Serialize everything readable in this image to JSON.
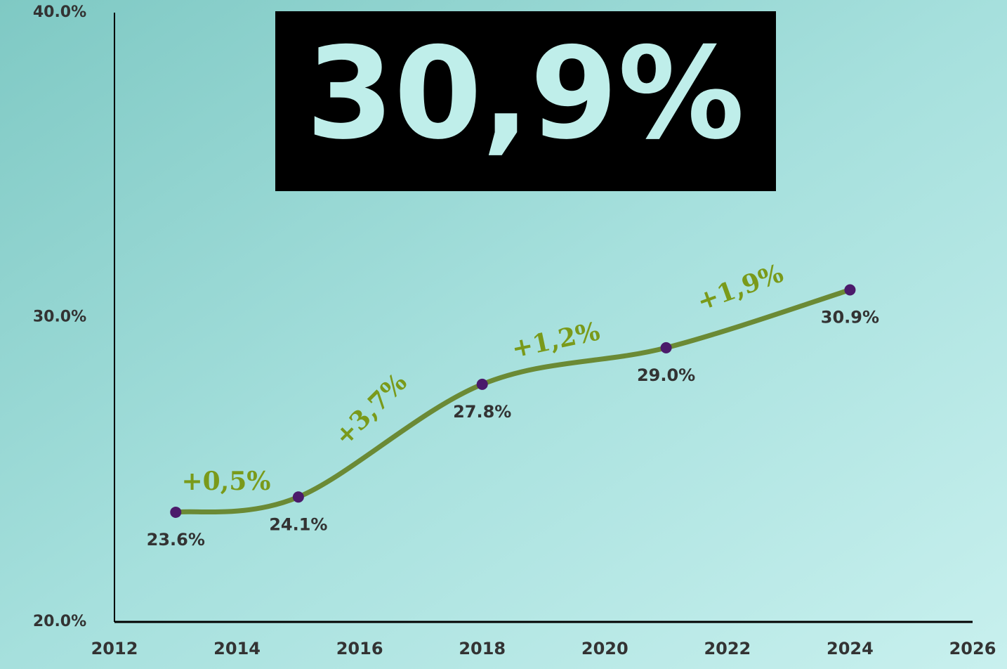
{
  "chart_data": {
    "type": "line",
    "headline": "30,9%",
    "x": [
      2013,
      2015,
      2018,
      2021,
      2024
    ],
    "series": [
      {
        "color": "#6b8a35",
        "marker_color": "#4b1a6b",
        "values": [
          23.6,
          24.1,
          27.8,
          29.0,
          30.9
        ],
        "value_labels": [
          "23.6%",
          "24.1%",
          "27.8%",
          "29.0%",
          "30.9%"
        ]
      }
    ],
    "annotations": [
      "+0,5%",
      "+3,7%",
      "+1,2%",
      "+1,9%"
    ],
    "xlim": [
      2012,
      2026
    ],
    "xticks": [
      2012,
      2014,
      2016,
      2018,
      2020,
      2022,
      2024,
      2026
    ],
    "ylim": [
      20,
      40
    ],
    "yticks": [
      {
        "value": 20,
        "label": "20.0%"
      },
      {
        "value": 30,
        "label": "30.0%"
      },
      {
        "value": 40,
        "label": "40.0%"
      }
    ]
  }
}
